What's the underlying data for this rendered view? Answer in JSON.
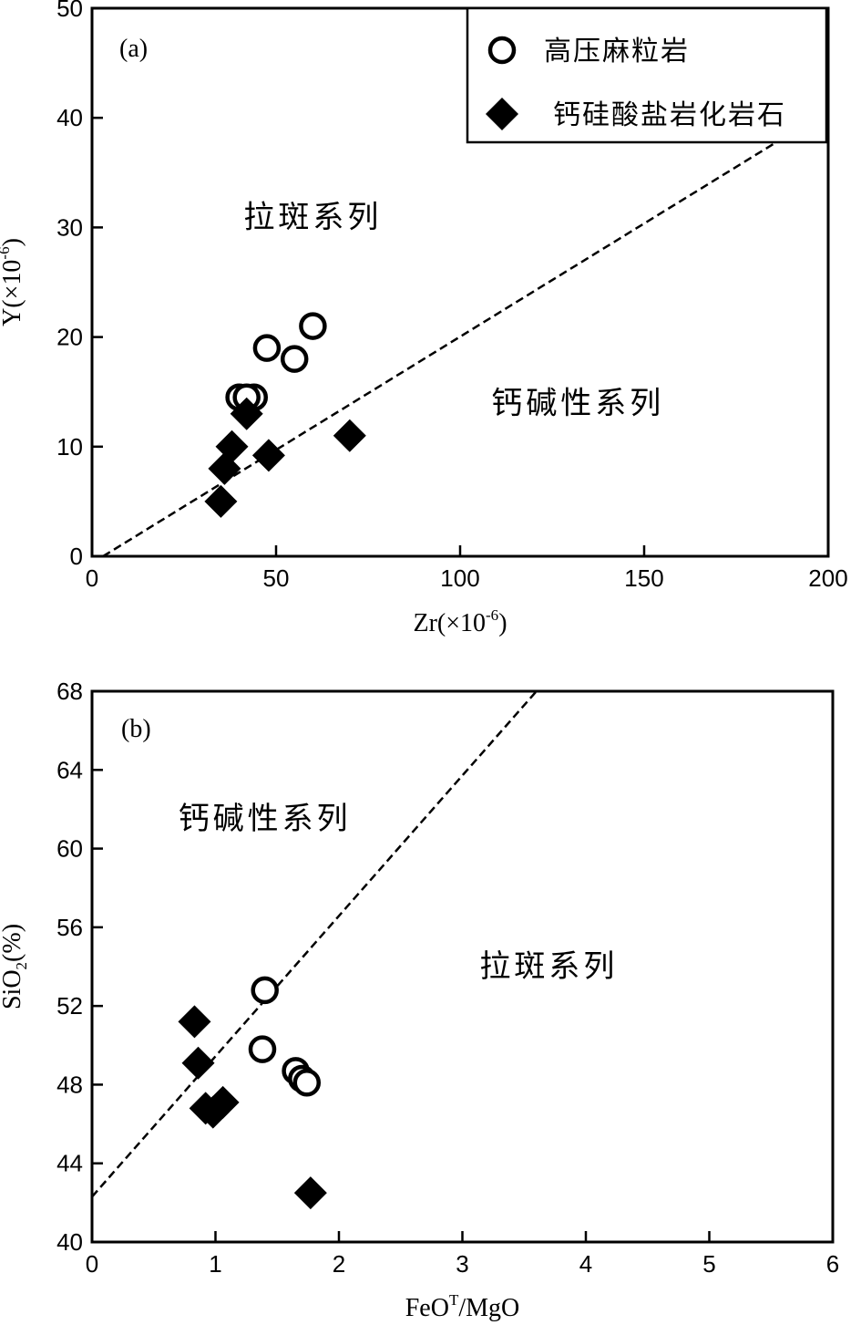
{
  "chart_data": [
    {
      "type": "scatter",
      "panel_label": "(a)",
      "xlabel": "Zr(×10",
      "xlabel_sup": "-6",
      "xlabel_close": ")",
      "ylabel": "Y(×10",
      "ylabel_sup": "-6",
      "ylabel_close": ")",
      "xlim": [
        0,
        200
      ],
      "ylim": [
        0,
        50
      ],
      "x_ticks": [
        0,
        50,
        100,
        150,
        200
      ],
      "y_ticks": [
        0,
        10,
        20,
        30,
        40,
        50
      ],
      "grid": false,
      "legend_position": "top-right",
      "divider_line": {
        "from": [
          3,
          0
        ],
        "to": [
          187,
          38
        ],
        "style": "dashed"
      },
      "region_labels": [
        {
          "text": "拉斑系列",
          "x": 60,
          "y": 30
        },
        {
          "text": "钙碱性系列",
          "x": 132,
          "y": 13
        }
      ],
      "series": [
        {
          "name": "高压麻粒岩",
          "marker": "open-circle",
          "points": [
            [
              40,
              14.5
            ],
            [
              44,
              14.5
            ],
            [
              42,
              14.5
            ],
            [
              47.5,
              19
            ],
            [
              55,
              18
            ],
            [
              60,
              21
            ]
          ]
        },
        {
          "name": "钙硅酸盐岩化岩石",
          "marker": "filled-diamond",
          "points": [
            [
              42,
              13
            ],
            [
              38,
              10
            ],
            [
              36,
              8
            ],
            [
              48,
              9.2
            ],
            [
              35,
              5
            ],
            [
              70,
              11
            ]
          ]
        }
      ]
    },
    {
      "type": "scatter",
      "panel_label": "(b)",
      "xlabel": "FeO",
      "xlabel_sup": "T",
      "xlabel_close": "/MgO",
      "ylabel": "SiO",
      "ylabel_sub": "2",
      "ylabel_close": "(%)",
      "xlim": [
        0,
        6
      ],
      "ylim": [
        40,
        68
      ],
      "x_ticks": [
        0,
        1,
        2,
        3,
        4,
        5,
        6
      ],
      "y_ticks": [
        40,
        44,
        48,
        52,
        56,
        60,
        64,
        68
      ],
      "grid": false,
      "divider_line": {
        "from": [
          0,
          42.3
        ],
        "to": [
          3.6,
          68
        ],
        "style": "dashed"
      },
      "region_labels": [
        {
          "text": "钙碱性系列",
          "x": 1.4,
          "y": 61
        },
        {
          "text": "拉斑系列",
          "x": 3.7,
          "y": 53.5
        }
      ],
      "series": [
        {
          "name": "高压麻粒岩",
          "marker": "open-circle",
          "points": [
            [
              1.4,
              52.8
            ],
            [
              1.38,
              49.8
            ],
            [
              1.65,
              48.7
            ],
            [
              1.7,
              48.3
            ],
            [
              1.74,
              48.1
            ]
          ]
        },
        {
          "name": "钙硅酸盐岩化岩石",
          "marker": "filled-diamond",
          "points": [
            [
              0.83,
              51.2
            ],
            [
              0.86,
              49.1
            ],
            [
              0.92,
              46.8
            ],
            [
              0.98,
              46.6
            ],
            [
              1.06,
              47.1
            ],
            [
              1.77,
              42.5
            ]
          ]
        }
      ]
    }
  ]
}
